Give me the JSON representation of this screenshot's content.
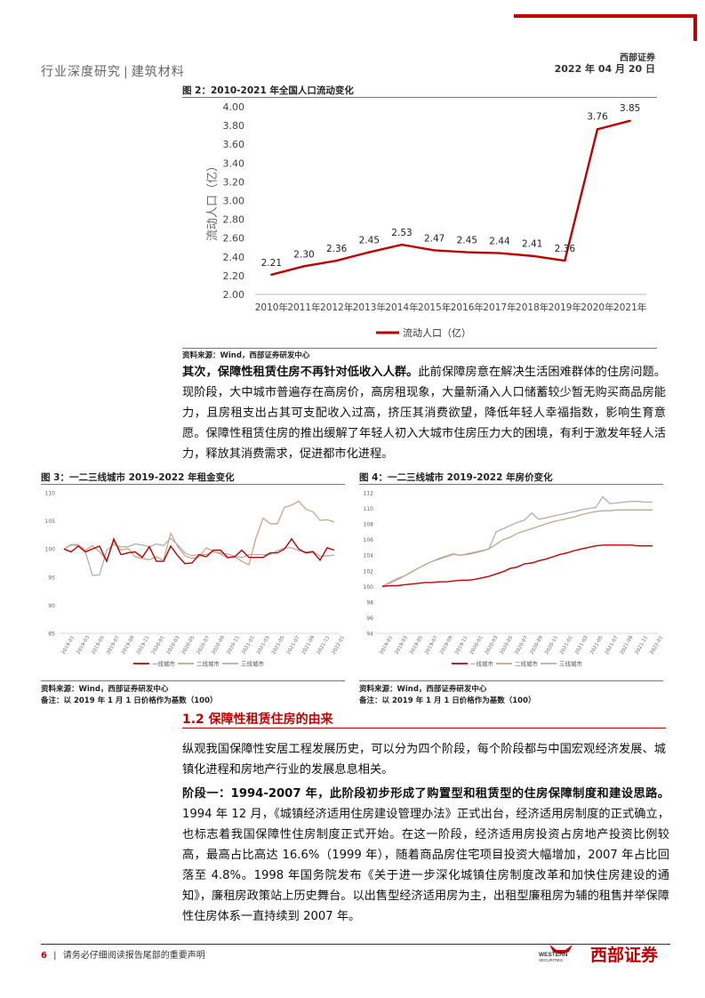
{
  "header": {
    "category": "行业深度研究",
    "separator": "|",
    "subcategory": "建筑材料",
    "brand": "西部证券",
    "date": "2022 年 04 月 20 日"
  },
  "figure2": {
    "title": "图 2：2010-2021 年全国人口流动变化",
    "source": "资料来源：Wind，西部证券研发中心"
  },
  "paragraph1": {
    "bold_lead": "其次，保障性租赁住房不再针对低收入人群。",
    "text": "此前保障房意在解决生活困难群体的住房问题。现阶段，大中城市普遍存在高房价，高房租现象，大量新涌入人口储蓄较少暂无购买商品房能力，且房租支出占其可支配收入过高，挤压其消费欲望，降低年轻人幸福指数，影响生育意愿。保障性租赁住房的推出缓解了年轻人初入大城市住房压力大的困境，有利于激发年轻人活力，释放其消费需求，促进都市化进程。"
  },
  "figure3": {
    "title": "图 3：一二三线城市 2019-2022 年租金变化",
    "source": "资料来源：Wind，西部证券研发中心",
    "note": "备注：以 2019 年 1 月 1 日价格作为基数（100）"
  },
  "figure4": {
    "title": "图 4：一二三线城市 2019-2022 年房价变化",
    "source": "资料来源：Wind，西部证券研发中心",
    "note": "备注：以 2019 年 1 月 1 日价格作为基数（100）"
  },
  "section": {
    "title": "1.2 保障性租赁住房的由来"
  },
  "paragraph2": {
    "text": "纵观我国保障性安居工程发展历史，可以分为四个阶段，每个阶段都与中国宏观经济发展、城镇化进程和房地产行业的发展息息相关。"
  },
  "paragraph3": {
    "bold_lead": "阶段一：1994-2007 年，此阶段初步形成了购置型和租赁型的住房保障制度和建设思路。",
    "text": "1994 年 12 月，《城镇经济适用住房建设管理办法》正式出台，经济适用房制度的正式确立，也标志着我国保障性住房制度正式开始。在这一阶段，经济适用房投资占房地产投资比例较高，最高占比高达 16.6%（1999 年），随着商品房住宅项目投资大幅增加，2007 年占比回落至 4.8%。1998 年国务院发布《关于进一步深化城镇住房制度改革和加快住房建设的通知》，廉租房政策站上历史舞台。以出售型经济适用房为主，出租型廉租房为辅的租售并举保障性住房体系一直持续到 2007 年。"
  },
  "footer": {
    "page": "6",
    "separator": "|",
    "disclaimer": "请务必仔细阅读报告尾部的重要声明",
    "logo_en": "WESTERN",
    "logo_en_sub": "SECURITIES",
    "logo_cn": "西部证券"
  },
  "colors": {
    "accent": "#c00000",
    "tier1": "#c00000",
    "tier2": "#c8a68c",
    "tier3": "#b0b0b0"
  },
  "chart_data": [
    {
      "id": "fig2",
      "type": "line",
      "title": "2010-2021 年全国人口流动变化",
      "ylabel": "流动人口（亿）",
      "xlabel": "",
      "categories": [
        "2010年",
        "2011年",
        "2012年",
        "2013年",
        "2014年",
        "2015年",
        "2016年",
        "2017年",
        "2018年",
        "2019年",
        "2020年",
        "2021年"
      ],
      "series": [
        {
          "name": "流动人口（亿）",
          "values": [
            2.21,
            2.3,
            2.36,
            2.45,
            2.53,
            2.47,
            2.45,
            2.44,
            2.41,
            2.36,
            3.76,
            3.85
          ]
        }
      ],
      "data_labels": [
        "2.21",
        "2.30",
        "2.36",
        "2.45",
        "2.53",
        "2.47",
        "2.45",
        "2.44",
        "2.41",
        "2.36",
        "3.76",
        "3.85"
      ],
      "ylim": [
        2.0,
        4.0
      ],
      "yticks": [
        "2.00",
        "2.20",
        "2.40",
        "2.60",
        "2.80",
        "3.00",
        "3.20",
        "3.40",
        "3.60",
        "3.80",
        "4.00"
      ],
      "legend": "bottom"
    },
    {
      "id": "fig3",
      "type": "line",
      "title": "一二三线城市 2019-2022 年租金变化",
      "ylim": [
        85,
        110
      ],
      "yticks": [
        "85",
        "90",
        "95",
        "100",
        "105",
        "110"
      ],
      "xticks": [
        "2019-01",
        "2019-03",
        "2019-05",
        "2019-07",
        "2019-09",
        "2019-11",
        "2020-01",
        "2020-03",
        "2020-05",
        "2020-07",
        "2020-09",
        "2020-11",
        "2021-01",
        "2021-03",
        "2021-05",
        "2021-07",
        "2021-09",
        "2021-11",
        "2022-01"
      ],
      "series": [
        {
          "name": "一线城市",
          "values": [
            100,
            99.5,
            100.5,
            99.5,
            100,
            100.5,
            97.8,
            101.8,
            99,
            99.3,
            99.5,
            98.5,
            100.4,
            97.8,
            97.8,
            100.5,
            98.8,
            97.4,
            97.5,
            99,
            98.6,
            99.8,
            99.8,
            98.5,
            98.6,
            99.8,
            98.5,
            98.5,
            98.5,
            99.3,
            99.3,
            100,
            101.8,
            100,
            99.3,
            99.5,
            98,
            100.2,
            99.8
          ]
        },
        {
          "name": "二线城市",
          "values": [
            100,
            100.8,
            100.8,
            99.8,
            100.6,
            99.5,
            98,
            101.3,
            99.8,
            100.1,
            98.6,
            98.3,
            98.1,
            98.6,
            98,
            102.8,
            100.4,
            98.8,
            98.3,
            98.6,
            100.2,
            99.6,
            99.1,
            98.4,
            98.6,
            97.8,
            97.2,
            102,
            105.5,
            104.5,
            104.5,
            107.4,
            107.8,
            108.5,
            107.1,
            106.6,
            105.1,
            105.2,
            104.8
          ]
        },
        {
          "name": "三线城市",
          "values": [
            100,
            100.7,
            100.6,
            99.5,
            95.3,
            95.4,
            99.8,
            100.8,
            100.4,
            100.4,
            100.9,
            100.7,
            100.4,
            100.9,
            100.6,
            101.9,
            100.7,
            99.3,
            98.8,
            99,
            99,
            99.5,
            99.3,
            99.1,
            98.7,
            98.5,
            99,
            99,
            99,
            99,
            99.7,
            100.2,
            100.2,
            99.7,
            99.5,
            99.6,
            98.7,
            98.8,
            98.9
          ]
        }
      ],
      "legend": "bottom"
    },
    {
      "id": "fig4",
      "type": "line",
      "title": "一二三线城市 2019-2022 年房价变化",
      "ylim": [
        94,
        112
      ],
      "yticks": [
        "94",
        "96",
        "98",
        "100",
        "102",
        "104",
        "106",
        "108",
        "110",
        "112"
      ],
      "xticks": [
        "2019-01",
        "2019-03",
        "2019-05",
        "2019-07",
        "2019-09",
        "2019-11",
        "2020-01",
        "2020-03",
        "2020-05",
        "2020-07",
        "2020-09",
        "2020-11",
        "2021-01",
        "2021-03",
        "2021-05",
        "2021-07",
        "2021-09",
        "2021-11",
        "2022-01"
      ],
      "series": [
        {
          "name": "一线城市",
          "values": [
            100,
            100.1,
            100.1,
            100.2,
            100.3,
            100.4,
            100.5,
            100.5,
            100.6,
            100.6,
            100.7,
            100.8,
            100.8,
            100.9,
            101.1,
            101.3,
            101.6,
            101.9,
            102.3,
            102.5,
            102.9,
            103,
            103.3,
            103.5,
            103.8,
            104.1,
            104.3,
            104.6,
            104.8,
            105,
            105.2,
            105.3,
            105.3,
            105.3,
            105.3,
            105.3,
            105.2,
            105.2,
            105.2
          ]
        },
        {
          "name": "二线城市",
          "values": [
            100,
            100.4,
            100.8,
            101.3,
            101.8,
            102.3,
            102.8,
            103.2,
            103.6,
            103.9,
            104.2,
            104,
            104.1,
            104.3,
            104.5,
            104.8,
            105.4,
            106,
            106.3,
            106.8,
            107.1,
            107.4,
            107.7,
            108,
            108.3,
            108.5,
            108.7,
            108.9,
            109.2,
            109.4,
            109.6,
            109.7,
            109.7,
            109.8,
            109.8,
            109.8,
            109.8,
            109.8,
            109.8
          ]
        },
        {
          "name": "三线城市",
          "values": [
            100,
            100.5,
            101,
            101.3,
            101.8,
            102.3,
            102.8,
            103.2,
            103.5,
            103.8,
            104.1,
            104,
            104.2,
            104.4,
            104.6,
            104.8,
            107,
            107.4,
            107.8,
            108.2,
            108.5,
            109.4,
            108.6,
            108.8,
            109,
            109.2,
            109.4,
            109.6,
            109.8,
            110,
            110.1,
            111.5,
            110.6,
            110.7,
            110.8,
            110.9,
            110.9,
            110.8,
            110.8
          ]
        }
      ],
      "legend": "bottom"
    }
  ]
}
